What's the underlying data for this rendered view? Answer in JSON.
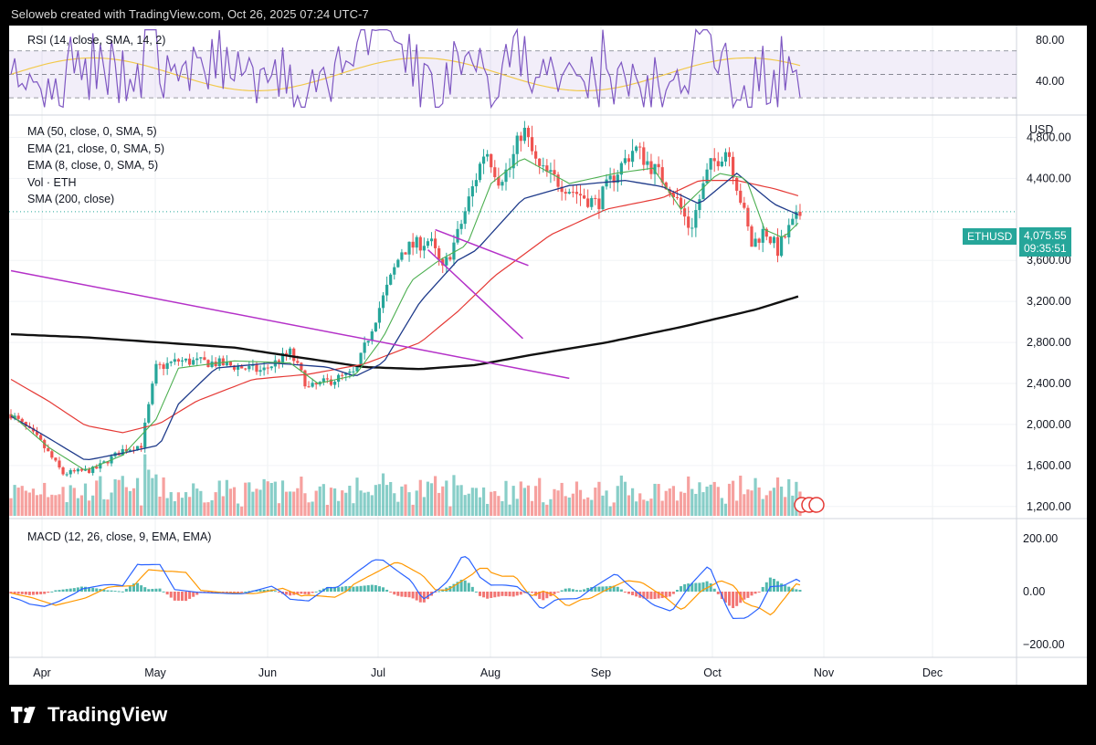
{
  "header": {
    "text": "Seloweb created with TradingView.com, Oct 26, 2025 07:24 UTC-7"
  },
  "footer": {
    "brand": "TradingView"
  },
  "currency": "USD",
  "ticker": {
    "symbol": "ETHUSD",
    "price": "4,075.55",
    "countdown": "09:35:51"
  },
  "rsi": {
    "label": "RSI (14, close, SMA, 14, 2)",
    "ticks": [
      "80.00",
      "40.00"
    ]
  },
  "main_legend": [
    "MA (50, close, 0, SMA, 5)",
    "EMA (21, close, 0, SMA, 5)",
    "EMA (8, close, 0, SMA, 5)",
    "Vol · ETH",
    "SMA (200, close)"
  ],
  "macd": {
    "label": "MACD (12, 26, close, 9, EMA, EMA)",
    "ticks": [
      "200.00",
      "0.00",
      "−200.00"
    ]
  },
  "colors": {
    "up": "#26a69a",
    "down": "#ef5350",
    "ema8": "#4caf50",
    "ema21": "#1e3a8a",
    "ma50": "#e53935",
    "sma200": "#111111",
    "trend": "#b431c8",
    "rsi": "#7e57c2",
    "rsi_sma": "#f2c94c",
    "macd": "#2962ff",
    "signal": "#ff9800"
  },
  "chart_data": {
    "type": "candlestick",
    "symbol": "ETHUSD",
    "x_axis_labels": [
      "Apr",
      "May",
      "Jun",
      "Jul",
      "Aug",
      "Sep",
      "Oct",
      "Nov",
      "Dec"
    ],
    "y_axis_ticks": [
      "4,800.00",
      "4,400.00",
      "3,600.00",
      "3,200.00",
      "2,800.00",
      "2,400.00",
      "2,000.00",
      "1,600.00",
      "1,200.00"
    ],
    "y_range": [
      1100,
      5000
    ],
    "series_keypoints": {
      "price": [
        [
          0,
          2100
        ],
        [
          15,
          1850
        ],
        [
          28,
          1520
        ],
        [
          45,
          1560
        ],
        [
          60,
          1750
        ],
        [
          70,
          1800
        ],
        [
          78,
          2550
        ],
        [
          90,
          2620
        ],
        [
          110,
          2600
        ],
        [
          135,
          2520
        ],
        [
          150,
          2700
        ],
        [
          160,
          2350
        ],
        [
          170,
          2420
        ],
        [
          185,
          2500
        ],
        [
          195,
          3000
        ],
        [
          210,
          3700
        ],
        [
          225,
          3800
        ],
        [
          232,
          3500
        ],
        [
          240,
          3850
        ],
        [
          255,
          4700
        ],
        [
          262,
          4400
        ],
        [
          268,
          4500
        ],
        [
          275,
          4900
        ],
        [
          283,
          4500
        ],
        [
          300,
          4300
        ],
        [
          315,
          4150
        ],
        [
          323,
          4400
        ],
        [
          335,
          4700
        ],
        [
          345,
          4500
        ],
        [
          355,
          4300
        ],
        [
          365,
          3900
        ],
        [
          375,
          4500
        ],
        [
          385,
          4700
        ],
        [
          392,
          4200
        ],
        [
          398,
          3750
        ],
        [
          405,
          3900
        ],
        [
          412,
          3700
        ],
        [
          418,
          3900
        ],
        [
          425,
          4075
        ]
      ],
      "sma200": [
        [
          0,
          2880
        ],
        [
          40,
          2850
        ],
        [
          80,
          2800
        ],
        [
          120,
          2750
        ],
        [
          160,
          2640
        ],
        [
          190,
          2560
        ],
        [
          220,
          2540
        ],
        [
          250,
          2580
        ],
        [
          280,
          2680
        ],
        [
          320,
          2800
        ],
        [
          360,
          2950
        ],
        [
          400,
          3120
        ],
        [
          425,
          3260
        ]
      ],
      "ma50": [
        [
          0,
          2440
        ],
        [
          20,
          2230
        ],
        [
          40,
          1990
        ],
        [
          60,
          1920
        ],
        [
          80,
          2010
        ],
        [
          100,
          2230
        ],
        [
          130,
          2440
        ],
        [
          160,
          2490
        ],
        [
          190,
          2590
        ],
        [
          220,
          2800
        ],
        [
          240,
          3100
        ],
        [
          260,
          3450
        ],
        [
          290,
          3850
        ],
        [
          320,
          4100
        ],
        [
          350,
          4210
        ],
        [
          370,
          4380
        ],
        [
          390,
          4380
        ],
        [
          410,
          4300
        ],
        [
          425,
          4220
        ]
      ],
      "ema21": [
        [
          0,
          2080
        ],
        [
          20,
          1870
        ],
        [
          40,
          1650
        ],
        [
          60,
          1720
        ],
        [
          80,
          1800
        ],
        [
          90,
          2200
        ],
        [
          110,
          2550
        ],
        [
          140,
          2600
        ],
        [
          170,
          2560
        ],
        [
          185,
          2470
        ],
        [
          200,
          2600
        ],
        [
          220,
          3200
        ],
        [
          240,
          3600
        ],
        [
          250,
          3700
        ],
        [
          260,
          3900
        ],
        [
          275,
          4200
        ],
        [
          300,
          4330
        ],
        [
          330,
          4380
        ],
        [
          350,
          4320
        ],
        [
          370,
          4150
        ],
        [
          390,
          4450
        ],
        [
          410,
          4150
        ],
        [
          425,
          4030
        ]
      ],
      "ema8": [
        [
          0,
          2100
        ],
        [
          20,
          1780
        ],
        [
          40,
          1550
        ],
        [
          60,
          1700
        ],
        [
          78,
          2050
        ],
        [
          90,
          2550
        ],
        [
          120,
          2620
        ],
        [
          150,
          2600
        ],
        [
          165,
          2400
        ],
        [
          185,
          2480
        ],
        [
          200,
          2850
        ],
        [
          215,
          3400
        ],
        [
          230,
          3600
        ],
        [
          245,
          3750
        ],
        [
          258,
          4350
        ],
        [
          275,
          4600
        ],
        [
          300,
          4350
        ],
        [
          325,
          4450
        ],
        [
          345,
          4500
        ],
        [
          360,
          4100
        ],
        [
          380,
          4450
        ],
        [
          395,
          4400
        ],
        [
          405,
          3900
        ],
        [
          415,
          3820
        ],
        [
          425,
          4000
        ]
      ],
      "trendline": [
        [
          0,
          3500
        ],
        [
          300,
          2450
        ]
      ],
      "channel": [
        [
          228,
          3900
        ],
        [
          278,
          3550
        ],
        [
          238,
          3650
        ],
        [
          268,
          3500
        ]
      ]
    },
    "rsi_axis": [
      20,
      80
    ],
    "macd_axis": [
      -200,
      200
    ]
  }
}
